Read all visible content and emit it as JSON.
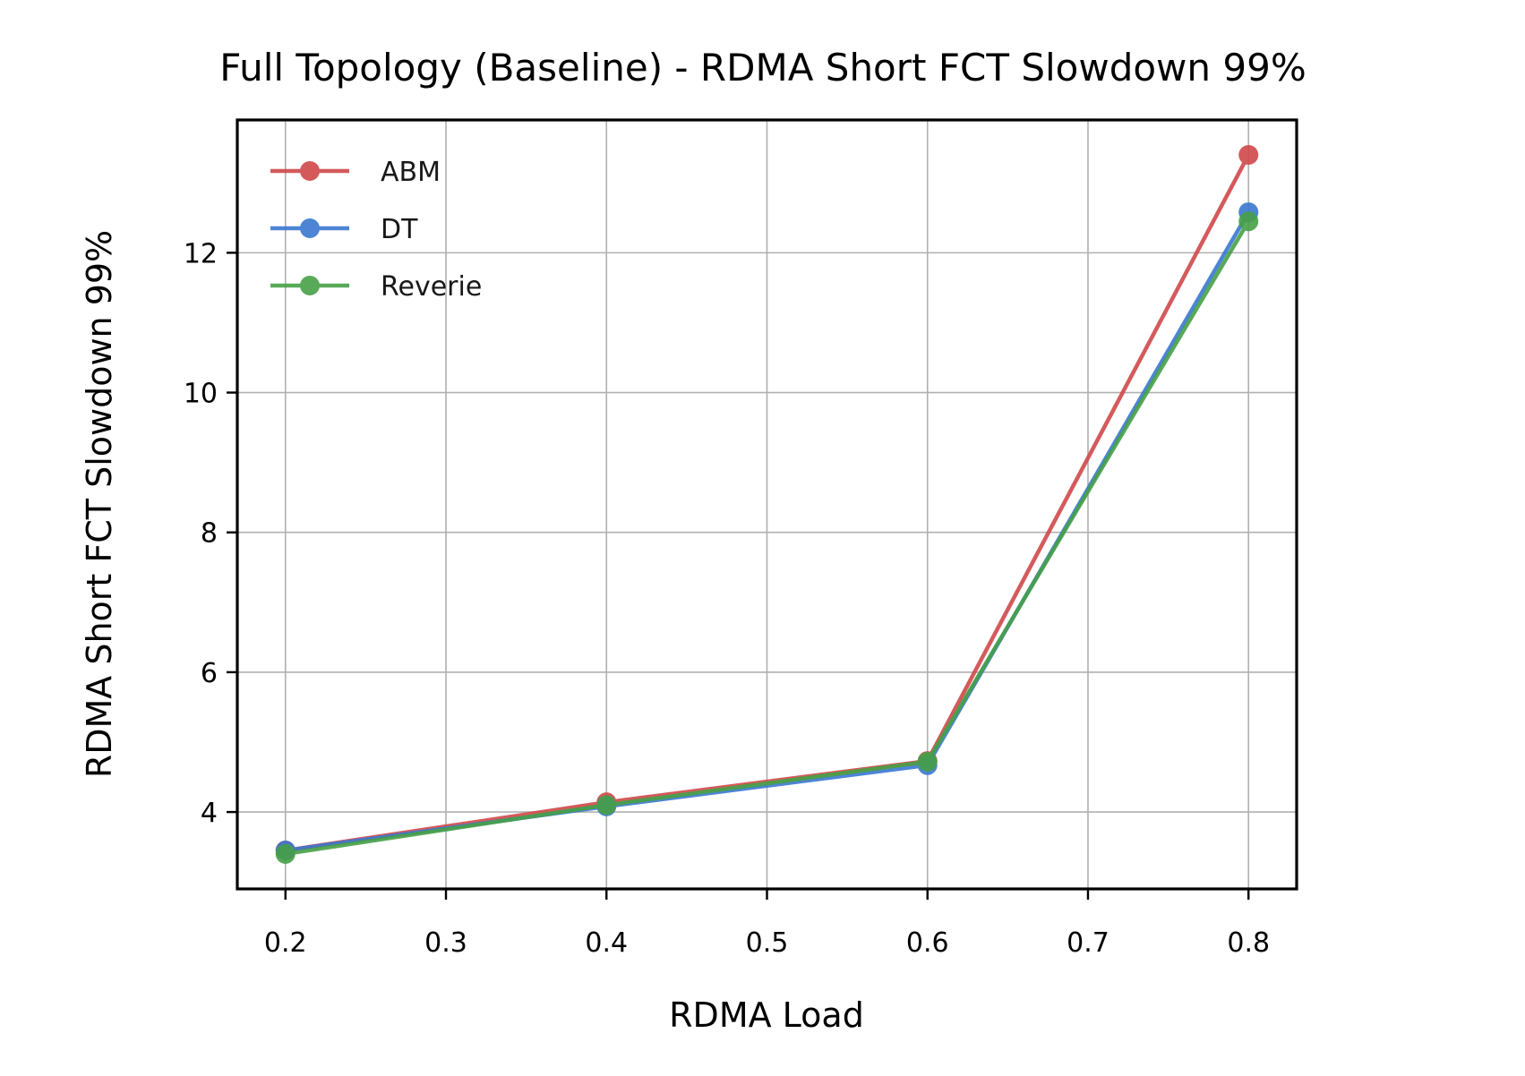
{
  "chart_data": {
    "type": "line",
    "title": "Full Topology (Baseline) - RDMA Short FCT Slowdown 99%",
    "xlabel": "RDMA Load",
    "ylabel": "RDMA Short FCT Slowdown 99%",
    "x": [
      0.2,
      0.4,
      0.6,
      0.8
    ],
    "xlim": [
      0.17,
      0.83
    ],
    "ylim": [
      2.9,
      13.9
    ],
    "xticks": [
      "0.2",
      "0.3",
      "0.4",
      "0.5",
      "0.6",
      "0.7",
      "0.8"
    ],
    "yticks": [
      "4",
      "6",
      "8",
      "10",
      "12"
    ],
    "grid": true,
    "legend_position": "top-left",
    "series": [
      {
        "name": "ABM",
        "color": "#d0484a",
        "values": [
          3.45,
          4.14,
          4.73,
          13.4
        ]
      },
      {
        "name": "DT",
        "color": "#3a78d0",
        "values": [
          3.45,
          4.08,
          4.67,
          12.58
        ]
      },
      {
        "name": "Reverie",
        "color": "#46a046",
        "values": [
          3.4,
          4.1,
          4.72,
          12.45
        ]
      }
    ]
  }
}
